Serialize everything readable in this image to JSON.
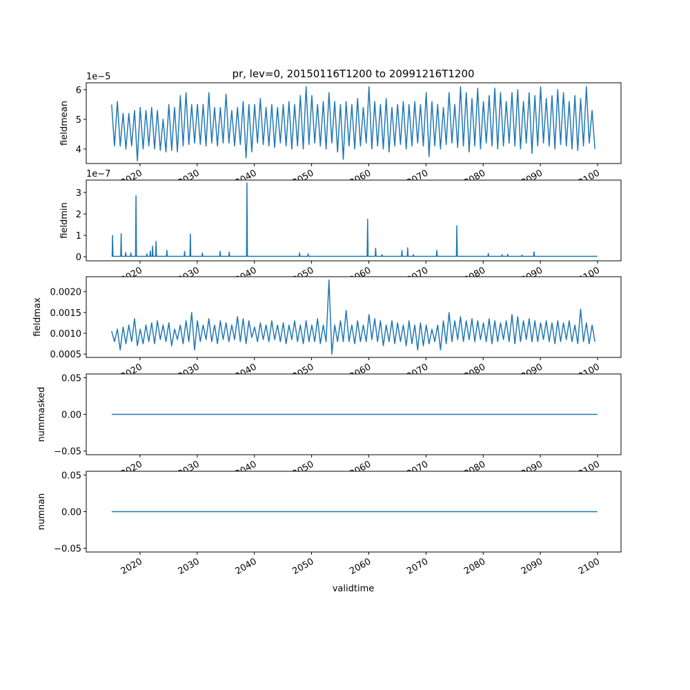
{
  "chart_data": {
    "type": "line",
    "title": "pr, lev=0, 20150116T1200 to 20991216T1200",
    "xlabel": "validtime",
    "xlim": [
      2010.6,
      2104.1
    ],
    "xticks": [
      2020,
      2030,
      2040,
      2050,
      2060,
      2070,
      2080,
      2090,
      2100
    ],
    "xtick_labels": [
      "2020",
      "2030",
      "2040",
      "2050",
      "2060",
      "2070",
      "2080",
      "2090",
      "2100"
    ],
    "line_color": "#1f77b4",
    "panels": [
      {
        "ylabel": "fieldmean",
        "offset_text": "1e−5",
        "ylim": [
          3.51,
          6.23
        ],
        "yticks": [
          4,
          5,
          6
        ],
        "ytick_labels": [
          "4",
          "5",
          "6"
        ],
        "x_start": 2015.04,
        "x_step": 0.5,
        "value_scale": 1,
        "values": [
          5.5,
          4.1,
          5.6,
          4.1,
          5.2,
          4.0,
          5.2,
          4.1,
          5.3,
          3.6,
          5.4,
          4.0,
          5.3,
          4.1,
          5.4,
          4.0,
          5.3,
          3.95,
          5.0,
          3.9,
          5.5,
          3.95,
          5.4,
          3.9,
          5.8,
          4.1,
          5.9,
          4.15,
          5.5,
          4.2,
          5.5,
          4.15,
          5.5,
          4.1,
          5.9,
          4.2,
          5.4,
          4.1,
          5.4,
          4.2,
          5.85,
          4.2,
          5.3,
          4.1,
          5.4,
          4.15,
          5.6,
          3.7,
          5.5,
          3.9,
          5.5,
          4.2,
          5.7,
          4.15,
          5.4,
          4.1,
          5.5,
          4.05,
          5.4,
          4.2,
          5.5,
          4.1,
          5.6,
          4.0,
          5.5,
          4.1,
          5.8,
          4.0,
          6.1,
          4.15,
          5.8,
          4.2,
          5.5,
          4.1,
          5.6,
          4.0,
          5.9,
          4.2,
          5.6,
          3.9,
          5.5,
          3.65,
          5.6,
          4.1,
          5.5,
          4.0,
          5.7,
          4.1,
          5.4,
          4.2,
          6.1,
          4.0,
          5.6,
          4.1,
          5.5,
          4.0,
          5.7,
          3.9,
          5.4,
          4.1,
          5.5,
          4.15,
          5.6,
          4.0,
          5.5,
          4.1,
          5.6,
          4.2,
          5.5,
          4.1,
          5.9,
          3.75,
          5.6,
          4.1,
          5.5,
          4.0,
          5.4,
          4.15,
          5.9,
          4.2,
          5.5,
          4.05,
          6.1,
          4.1,
          5.9,
          3.9,
          5.7,
          4.1,
          6.05,
          4.0,
          5.6,
          4.2,
          5.8,
          4.1,
          6.05,
          4.0,
          5.9,
          4.1,
          5.6,
          4.2,
          5.9,
          4.1,
          6.0,
          4.0,
          5.6,
          4.2,
          5.9,
          3.85,
          5.8,
          4.1,
          6.1,
          4.2,
          5.7,
          4.1,
          5.8,
          4.0,
          6.0,
          4.15,
          5.9,
          4.1,
          5.6,
          4.0,
          5.8,
          3.95,
          5.7,
          4.1,
          6.1,
          4.2,
          5.3,
          4.0
        ]
      },
      {
        "ylabel": "fieldmin",
        "offset_text": "1e−7",
        "ylim": [
          -0.19,
          3.58
        ],
        "yticks": [
          0,
          1,
          2,
          3
        ],
        "ytick_labels": [
          "0",
          "1",
          "2",
          "3"
        ],
        "baseline": 0.02,
        "x_range": [
          2015.04,
          2099.96
        ],
        "spikes": [
          [
            2015.2,
            1.0
          ],
          [
            2016.7,
            1.08
          ],
          [
            2017.5,
            0.2
          ],
          [
            2018.4,
            0.18
          ],
          [
            2019.3,
            2.85
          ],
          [
            2021.2,
            0.14
          ],
          [
            2021.8,
            0.27
          ],
          [
            2022.2,
            0.5
          ],
          [
            2022.8,
            0.72
          ],
          [
            2024.7,
            0.3
          ],
          [
            2027.8,
            0.25
          ],
          [
            2028.8,
            1.06
          ],
          [
            2030.9,
            0.18
          ],
          [
            2034.0,
            0.25
          ],
          [
            2035.6,
            0.22
          ],
          [
            2038.7,
            3.45
          ],
          [
            2047.9,
            0.18
          ],
          [
            2049.4,
            0.14
          ],
          [
            2059.8,
            1.75
          ],
          [
            2061.2,
            0.4
          ],
          [
            2062.3,
            0.1
          ],
          [
            2065.8,
            0.3
          ],
          [
            2066.8,
            0.42
          ],
          [
            2067.8,
            0.1
          ],
          [
            2071.9,
            0.3
          ],
          [
            2075.4,
            1.45
          ],
          [
            2080.9,
            0.15
          ],
          [
            2083.3,
            0.1
          ],
          [
            2084.3,
            0.12
          ],
          [
            2086.8,
            0.08
          ],
          [
            2088.9,
            0.23
          ]
        ]
      },
      {
        "ylabel": "fieldmax",
        "offset_text": "",
        "ylim": [
          0.00042,
          0.00236
        ],
        "yticks": [
          0.0005,
          0.001,
          0.0015,
          0.002
        ],
        "ytick_labels": [
          "0.0005",
          "0.0010",
          "0.0015",
          "0.0020"
        ],
        "x_start": 2015.04,
        "x_step": 0.5,
        "value_scale": 0.001,
        "values": [
          1.05,
          0.8,
          1.1,
          0.6,
          1.15,
          0.75,
          1.2,
          0.8,
          1.35,
          0.7,
          1.1,
          0.75,
          1.2,
          0.8,
          1.25,
          0.75,
          1.3,
          0.85,
          1.2,
          0.8,
          1.25,
          0.7,
          1.1,
          0.85,
          1.2,
          0.75,
          1.3,
          0.8,
          1.5,
          0.6,
          1.3,
          0.8,
          1.2,
          0.85,
          1.35,
          0.8,
          1.2,
          0.75,
          1.3,
          0.85,
          1.25,
          0.8,
          1.2,
          0.85,
          1.4,
          0.8,
          1.35,
          0.75,
          1.3,
          0.9,
          1.15,
          0.8,
          1.25,
          0.85,
          1.2,
          0.8,
          1.3,
          0.85,
          1.2,
          0.8,
          1.25,
          0.75,
          1.2,
          0.85,
          1.3,
          0.8,
          1.2,
          0.75,
          1.3,
          0.8,
          1.2,
          0.8,
          1.35,
          0.75,
          1.2,
          0.8,
          2.28,
          0.5,
          1.2,
          0.8,
          1.3,
          0.8,
          1.55,
          0.8,
          1.2,
          0.75,
          1.3,
          0.8,
          1.2,
          0.8,
          1.45,
          0.85,
          1.35,
          0.8,
          1.3,
          0.7,
          1.2,
          0.8,
          1.3,
          0.75,
          1.25,
          0.8,
          1.2,
          0.7,
          1.3,
          0.75,
          1.2,
          0.6,
          1.25,
          0.7,
          1.2,
          0.75,
          1.1,
          0.8,
          1.2,
          0.6,
          1.3,
          0.75,
          1.5,
          0.8,
          1.3,
          0.85,
          1.4,
          0.8,
          1.3,
          0.85,
          1.35,
          0.8,
          1.3,
          0.85,
          1.25,
          0.8,
          1.35,
          0.75,
          1.3,
          0.8,
          1.25,
          0.85,
          1.3,
          0.8,
          1.45,
          0.75,
          1.4,
          0.8,
          1.3,
          0.85,
          1.35,
          0.8,
          1.3,
          0.8,
          1.25,
          0.85,
          1.3,
          0.8,
          1.25,
          0.75,
          1.3,
          0.8,
          1.25,
          0.85,
          1.3,
          0.8,
          1.2,
          0.75,
          1.58,
          0.8,
          1.25,
          0.75,
          1.2,
          0.8
        ]
      },
      {
        "ylabel": "nummasked",
        "offset_text": "",
        "ylim": [
          -0.055,
          0.055
        ],
        "yticks": [
          -0.05,
          0,
          0.05
        ],
        "ytick_labels": [
          "−0.05",
          "0.00",
          "0.05"
        ],
        "baseline": 0,
        "x_range": [
          2015.04,
          2099.96
        ],
        "spikes": []
      },
      {
        "ylabel": "numnan",
        "offset_text": "",
        "ylim": [
          -0.055,
          0.055
        ],
        "yticks": [
          -0.05,
          0,
          0.05
        ],
        "ytick_labels": [
          "−0.05",
          "0.00",
          "0.05"
        ],
        "baseline": 0,
        "x_range": [
          2015.04,
          2099.96
        ],
        "spikes": []
      }
    ]
  }
}
